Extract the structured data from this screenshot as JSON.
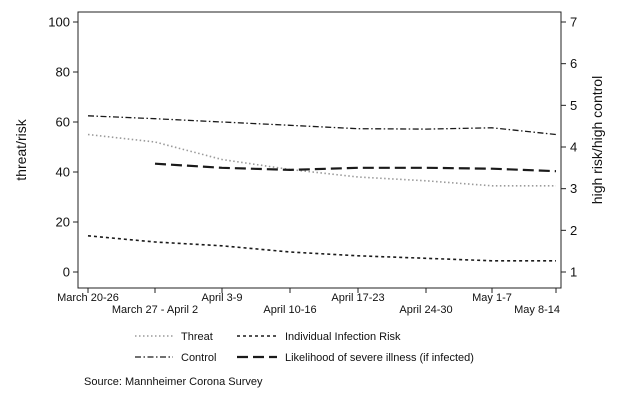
{
  "chart_data": {
    "type": "line",
    "title": "",
    "ylabel": "threat/risk",
    "y2label": "high risk/high control",
    "ylim": [
      0,
      100
    ],
    "y2lim": [
      1,
      7
    ],
    "yticks": [
      0,
      20,
      40,
      60,
      80,
      100
    ],
    "y2ticks": [
      1,
      2,
      3,
      4,
      5,
      6,
      7
    ],
    "grid": false,
    "categories": [
      "March 20-26",
      "March 27 - April 2",
      "April 3-9",
      "April 10-16",
      "April 17-23",
      "April 24-30",
      "May 1-7",
      "May 8-14"
    ],
    "series": [
      {
        "name": "Threat",
        "axis": "left",
        "style": "dotted",
        "color": "#9a9a9a",
        "values": [
          55,
          52,
          45,
          41,
          38,
          36.5,
          34.5,
          34.5
        ]
      },
      {
        "name": "Individual Infection Risk",
        "axis": "left",
        "style": "dashed",
        "color": "#1a1a1a",
        "values": [
          14.5,
          12,
          10.5,
          8,
          6.5,
          5.5,
          4.5,
          4.5
        ]
      },
      {
        "name": "Control",
        "axis": "right",
        "style": "dashdot",
        "color": "#1a1a1a",
        "values": [
          4.75,
          4.68,
          4.6,
          4.52,
          4.44,
          4.43,
          4.46,
          4.3
        ]
      },
      {
        "name": "Likelihood of severe illness (if infected)",
        "axis": "right",
        "style": "longdash",
        "color": "#1a1a1a",
        "values": [
          null,
          3.6,
          3.5,
          3.45,
          3.5,
          3.5,
          3.48,
          3.42
        ]
      }
    ],
    "legend_position": "bottom"
  },
  "legend": {
    "threat": "Threat",
    "infection_risk": "Individual Infection Risk",
    "control": "Control",
    "severe_illness": "Likelihood of severe illness (if infected)"
  },
  "source": "Source: Mannheimer Corona Survey"
}
